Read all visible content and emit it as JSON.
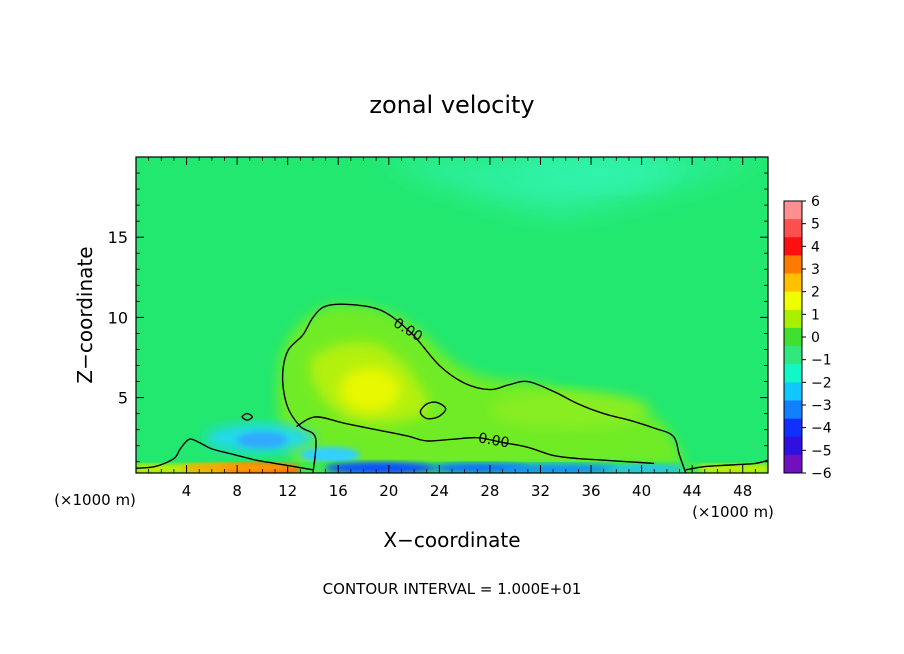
{
  "chart_data": {
    "type": "heatmap",
    "title": "zonal velocity",
    "xlabel": "X−coordinate",
    "ylabel": "Z−coordinate",
    "x_unit_left": "(×1000 m)",
    "x_unit_right": "(×1000 m)",
    "footer": "CONTOUR INTERVAL = 1.000E+01",
    "xlim": [
      0,
      50
    ],
    "ylim": [
      0.3,
      20
    ],
    "x_ticks": [
      4,
      8,
      12,
      16,
      20,
      24,
      28,
      32,
      36,
      40,
      44,
      48
    ],
    "x_tick_labels": [
      "4",
      "8",
      "12",
      "16",
      "20",
      "24",
      "28",
      "32",
      "36",
      "40",
      "44",
      "48"
    ],
    "y_ticks": [
      5,
      10,
      15
    ],
    "y_tick_labels": [
      "5",
      "10",
      "15"
    ],
    "contour_labels": [
      {
        "text": "0.00",
        "x": 21.5,
        "y": 9.2
      },
      {
        "text": "0.00",
        "x": 28.3,
        "y": 2.3
      }
    ],
    "zero_contour_upper": [
      [
        14.0,
        0.3
      ],
      [
        14.2,
        2.5
      ],
      [
        13.0,
        3.2
      ],
      [
        12.0,
        4.4
      ],
      [
        11.6,
        6.2
      ],
      [
        12.0,
        7.9
      ],
      [
        13.2,
        8.9
      ],
      [
        14.0,
        10.0
      ],
      [
        15.0,
        10.7
      ],
      [
        17.0,
        10.8
      ],
      [
        19.5,
        10.4
      ],
      [
        21.8,
        9.0
      ],
      [
        24.0,
        7.0
      ],
      [
        26.0,
        5.9
      ],
      [
        28.0,
        5.5
      ],
      [
        29.5,
        5.8
      ],
      [
        31.0,
        6.0
      ],
      [
        33.0,
        5.4
      ],
      [
        35.0,
        4.6
      ],
      [
        37.0,
        4.0
      ],
      [
        39.0,
        3.6
      ],
      [
        41.0,
        3.1
      ],
      [
        42.5,
        2.6
      ],
      [
        43.0,
        1.4
      ],
      [
        43.5,
        0.3
      ]
    ],
    "zero_contour_lower": [
      [
        12.7,
        3.2
      ],
      [
        14.2,
        3.8
      ],
      [
        16.5,
        3.4
      ],
      [
        19.0,
        3.0
      ],
      [
        21.5,
        2.6
      ],
      [
        23.0,
        2.3
      ],
      [
        25.0,
        2.4
      ],
      [
        27.0,
        2.5
      ],
      [
        29.0,
        2.2
      ],
      [
        31.0,
        1.9
      ],
      [
        33.0,
        1.4
      ],
      [
        35.0,
        1.2
      ],
      [
        37.0,
        1.1
      ],
      [
        39.0,
        1.0
      ],
      [
        41.0,
        0.9
      ]
    ],
    "zero_contour_small": [
      [
        22.5,
        4.1
      ],
      [
        23.0,
        4.6
      ],
      [
        23.8,
        4.7
      ],
      [
        24.5,
        4.3
      ],
      [
        23.9,
        3.8
      ],
      [
        23.0,
        3.7
      ]
    ],
    "zero_contour_tiny": [
      [
        8.4,
        3.8
      ],
      [
        8.8,
        4.0
      ],
      [
        9.2,
        3.8
      ],
      [
        8.8,
        3.6
      ]
    ],
    "zero_contour_left": [
      [
        0.0,
        0.6
      ],
      [
        1.5,
        0.7
      ],
      [
        3.0,
        1.2
      ],
      [
        3.5,
        1.8
      ],
      [
        4.2,
        2.4
      ],
      [
        5.0,
        2.2
      ],
      [
        6.0,
        1.8
      ],
      [
        7.5,
        1.5
      ],
      [
        9.5,
        1.1
      ],
      [
        11.0,
        0.9
      ],
      [
        12.5,
        0.7
      ],
      [
        14.0,
        0.5
      ]
    ],
    "zero_contour_right": [
      [
        43.5,
        0.5
      ],
      [
        45.0,
        0.7
      ],
      [
        47.0,
        0.8
      ],
      [
        49.0,
        0.9
      ],
      [
        50.0,
        1.1
      ]
    ],
    "colorbar": {
      "levels": [
        "6",
        "5",
        "4",
        "3",
        "2",
        "1",
        "0",
        "−1",
        "−2",
        "−3",
        "−4",
        "−5",
        "−6"
      ],
      "colors": [
        "#ff9090",
        "#ff5050",
        "#ff1010",
        "#ff7a00",
        "#ffc000",
        "#f0ff00",
        "#a8f000",
        "#40e030",
        "#30e880",
        "#10f8c8",
        "#10c8ff",
        "#1080ff",
        "#1030ff",
        "#3010e0",
        "#7010c0"
      ]
    },
    "field_background": "#22e870",
    "features": [
      {
        "name": "jet-core",
        "x": 18.5,
        "y": 5.5,
        "value": 1.5
      },
      {
        "name": "surface-positive",
        "x": 10.0,
        "y": 0.5,
        "value": 5.0
      },
      {
        "name": "surface-negative",
        "x": 22.0,
        "y": 0.5,
        "value": -5.0
      },
      {
        "name": "upper-negative",
        "x": 30.0,
        "y": 18.0,
        "value": -1.0
      }
    ]
  }
}
